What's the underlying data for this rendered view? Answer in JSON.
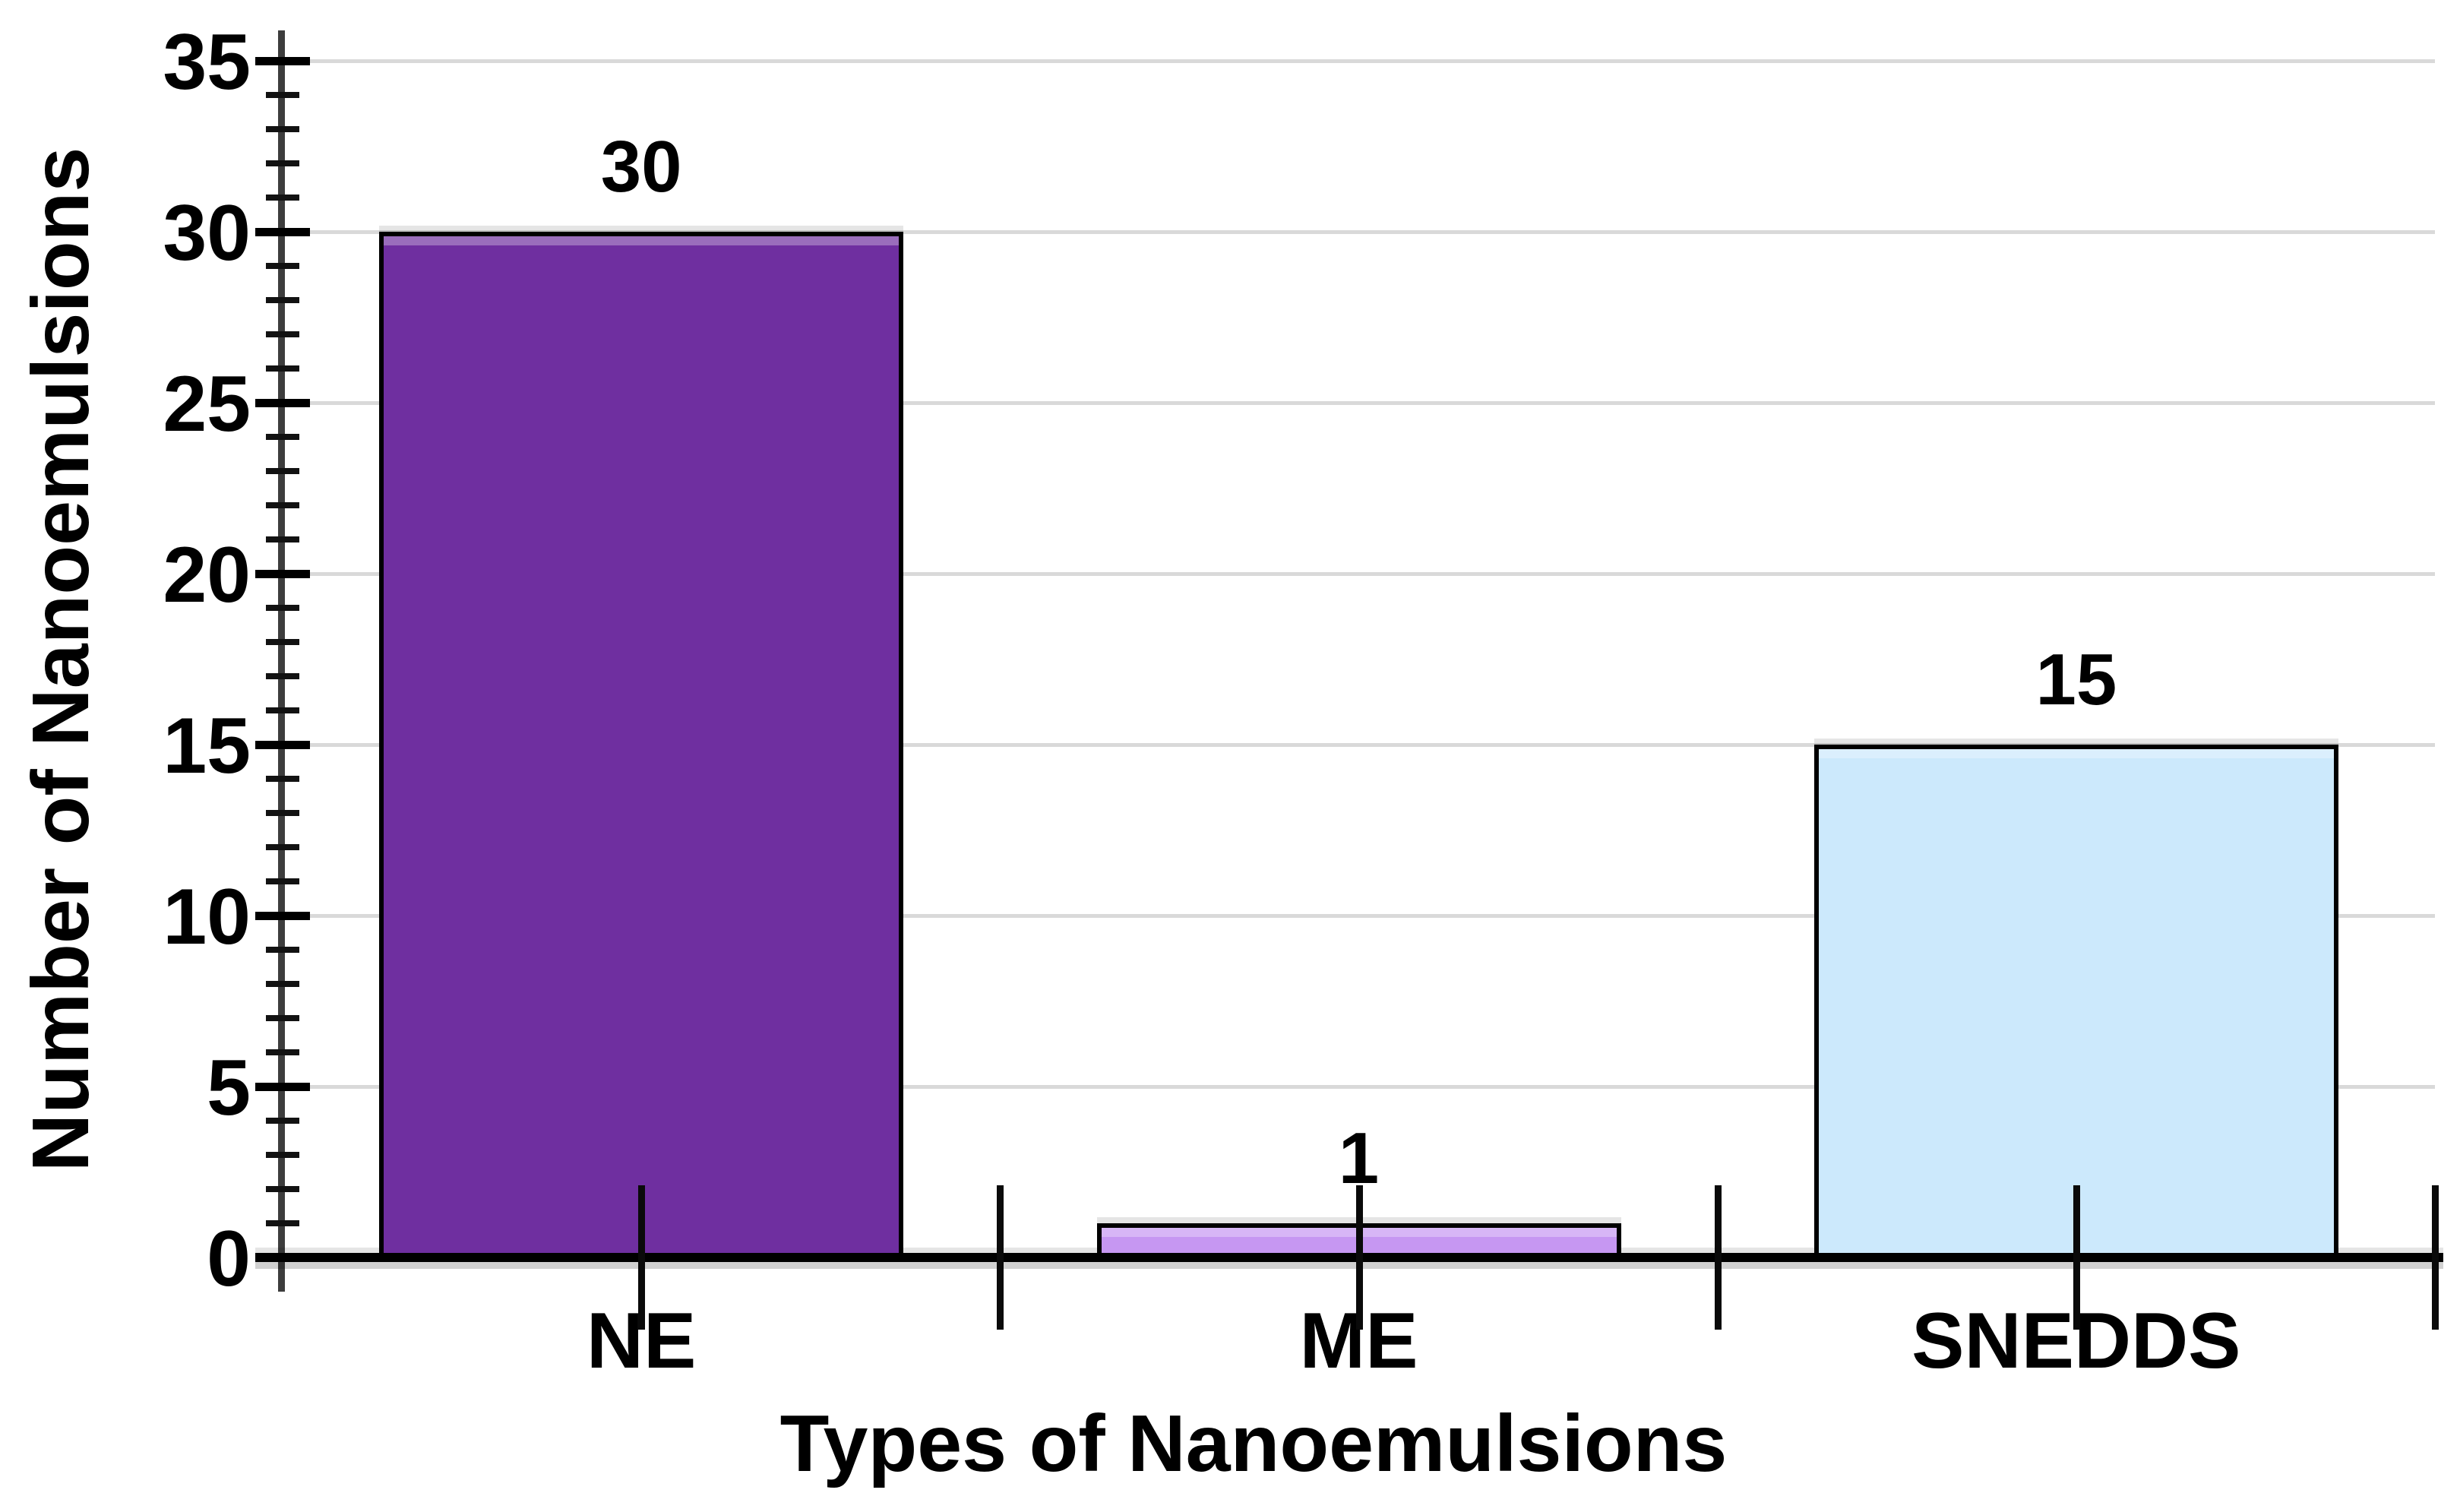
{
  "page": {
    "background_color": "#FFFFFF",
    "text_color": "#000000"
  },
  "chart_data": {
    "type": "bar",
    "title": "",
    "categories": [
      "NE",
      "ME",
      "SNEDDS"
    ],
    "values": [
      30,
      1,
      15
    ],
    "data_labels": [
      "30",
      "1",
      "15"
    ],
    "xlabel": "Types of Nanoemulsions",
    "ylabel": "Number of Nanoemulsions",
    "ylim": [
      0,
      35
    ],
    "yticks": [
      0,
      5,
      10,
      15,
      20,
      25,
      30,
      35
    ],
    "ytick_major_step": 5,
    "ytick_minor_step": 1,
    "grid": true,
    "legend": null,
    "bar_colors": [
      "#6F2FA0",
      "#C697F2",
      "#CCE9FC"
    ],
    "bar_border_color": "#000000",
    "gridline_color": "#D9D9D9",
    "axis_color": "#000000",
    "background_color": "#FFFFFF"
  }
}
